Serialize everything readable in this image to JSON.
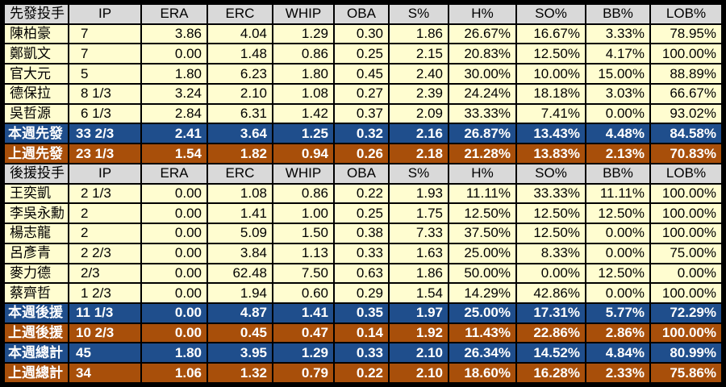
{
  "colors": {
    "header_bg": "#d9d9d9",
    "player_bg": "#fffdd0",
    "this_week_bg": "#1f4e8c",
    "last_week_bg": "#a84f0a"
  },
  "columns": [
    "IP",
    "ERA",
    "ERC",
    "WHIP",
    "OBA",
    "S%",
    "H%",
    "SO%",
    "BB%",
    "LOB%"
  ],
  "rows": [
    {
      "type": "head",
      "cells": [
        "先發投手",
        "IP",
        "ERA",
        "ERC",
        "WHIP",
        "OBA",
        "S%",
        "H%",
        "SO%",
        "BB%",
        "LOB%"
      ]
    },
    {
      "type": "player",
      "cells": [
        "陳柏豪",
        "7",
        "3.86",
        "4.04",
        "1.29",
        "0.30",
        "1.86",
        "26.67%",
        "16.67%",
        "3.33%",
        "78.95%"
      ]
    },
    {
      "type": "player",
      "cells": [
        "鄭凱文",
        "7",
        "0.00",
        "1.48",
        "0.86",
        "0.25",
        "2.15",
        "20.83%",
        "12.50%",
        "4.17%",
        "100.00%"
      ]
    },
    {
      "type": "player",
      "cells": [
        "官大元",
        "5",
        "1.80",
        "6.23",
        "1.80",
        "0.45",
        "2.40",
        "30.00%",
        "10.00%",
        "15.00%",
        "88.89%"
      ]
    },
    {
      "type": "player",
      "cells": [
        "德保拉",
        "8 1/3",
        "3.24",
        "2.10",
        "1.08",
        "0.27",
        "2.39",
        "24.24%",
        "18.18%",
        "3.03%",
        "66.67%"
      ]
    },
    {
      "type": "player",
      "cells": [
        "吳哲源",
        "6 1/3",
        "2.84",
        "6.31",
        "1.42",
        "0.37",
        "2.09",
        "33.33%",
        "7.41%",
        "0.00%",
        "93.02%"
      ]
    },
    {
      "type": "blue",
      "cells": [
        "本週先發",
        "33 2/3",
        "2.41",
        "3.64",
        "1.25",
        "0.32",
        "2.16",
        "26.87%",
        "13.43%",
        "4.48%",
        "84.58%"
      ]
    },
    {
      "type": "orange",
      "cells": [
        "上週先發",
        "23 1/3",
        "1.54",
        "1.82",
        "0.94",
        "0.26",
        "2.18",
        "21.28%",
        "13.83%",
        "2.13%",
        "70.83%"
      ]
    },
    {
      "type": "head",
      "cells": [
        "後援投手",
        "IP",
        "ERA",
        "ERC",
        "WHIP",
        "OBA",
        "S%",
        "H%",
        "SO%",
        "BB%",
        "LOB%"
      ]
    },
    {
      "type": "player",
      "cells": [
        "王奕凱",
        "2 1/3",
        "0.00",
        "1.08",
        "0.86",
        "0.22",
        "1.93",
        "11.11%",
        "33.33%",
        "11.11%",
        "100.00%"
      ]
    },
    {
      "type": "player",
      "cells": [
        "李吳永勳",
        "2",
        "0.00",
        "1.41",
        "1.00",
        "0.25",
        "1.75",
        "12.50%",
        "12.50%",
        "12.50%",
        "100.00%"
      ]
    },
    {
      "type": "player",
      "cells": [
        "楊志龍",
        "2",
        "0.00",
        "5.09",
        "1.50",
        "0.38",
        "7.33",
        "37.50%",
        "12.50%",
        "0.00%",
        "100.00%"
      ]
    },
    {
      "type": "player",
      "cells": [
        "呂彥青",
        "2 2/3",
        "0.00",
        "3.84",
        "1.13",
        "0.33",
        "1.63",
        "25.00%",
        "8.33%",
        "0.00%",
        "75.00%"
      ]
    },
    {
      "type": "player",
      "cells": [
        "麥力德",
        " 2/3",
        "0.00",
        "62.48",
        "7.50",
        "0.63",
        "1.86",
        "50.00%",
        "0.00%",
        "12.50%",
        "0.00%"
      ]
    },
    {
      "type": "player",
      "cells": [
        "蔡齊哲",
        "1 2/3",
        "0.00",
        "1.94",
        "0.60",
        "0.29",
        "1.54",
        "14.29%",
        "42.86%",
        "0.00%",
        "100.00%"
      ]
    },
    {
      "type": "blue",
      "cells": [
        "本週後援",
        "11 1/3",
        "0.00",
        "4.87",
        "1.41",
        "0.35",
        "1.97",
        "25.00%",
        "17.31%",
        "5.77%",
        "72.29%"
      ]
    },
    {
      "type": "orange",
      "cells": [
        "上週後援",
        "10 2/3",
        "0.00",
        "0.45",
        "0.47",
        "0.14",
        "1.92",
        "11.43%",
        "22.86%",
        "2.86%",
        "100.00%"
      ]
    },
    {
      "type": "blue",
      "cells": [
        "本週總計",
        "45",
        "1.80",
        "3.95",
        "1.29",
        "0.33",
        "2.10",
        "26.34%",
        "14.52%",
        "4.84%",
        "80.99%"
      ]
    },
    {
      "type": "orange",
      "cells": [
        "上週總計",
        "34",
        "1.06",
        "1.32",
        "0.79",
        "0.22",
        "2.10",
        "18.60%",
        "16.28%",
        "2.33%",
        "75.86%"
      ]
    }
  ]
}
